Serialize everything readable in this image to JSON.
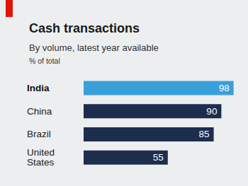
{
  "chart_data": {
    "type": "bar",
    "title": "Cash transactions",
    "subtitle": "By volume, latest year available",
    "xlabel": "% of total",
    "categories": [
      "India",
      "China",
      "Brazil",
      "United States"
    ],
    "values": [
      98,
      90,
      85,
      55
    ],
    "colors": [
      "#3a9ed9",
      "#1d2d4e",
      "#1d2d4e",
      "#1d2d4e"
    ],
    "orientation": "horizontal",
    "data_labels": true,
    "tick_labels": "y",
    "grid": false,
    "xlim": [
      0,
      100
    ],
    "xticks": [
      0,
      100
    ]
  }
}
